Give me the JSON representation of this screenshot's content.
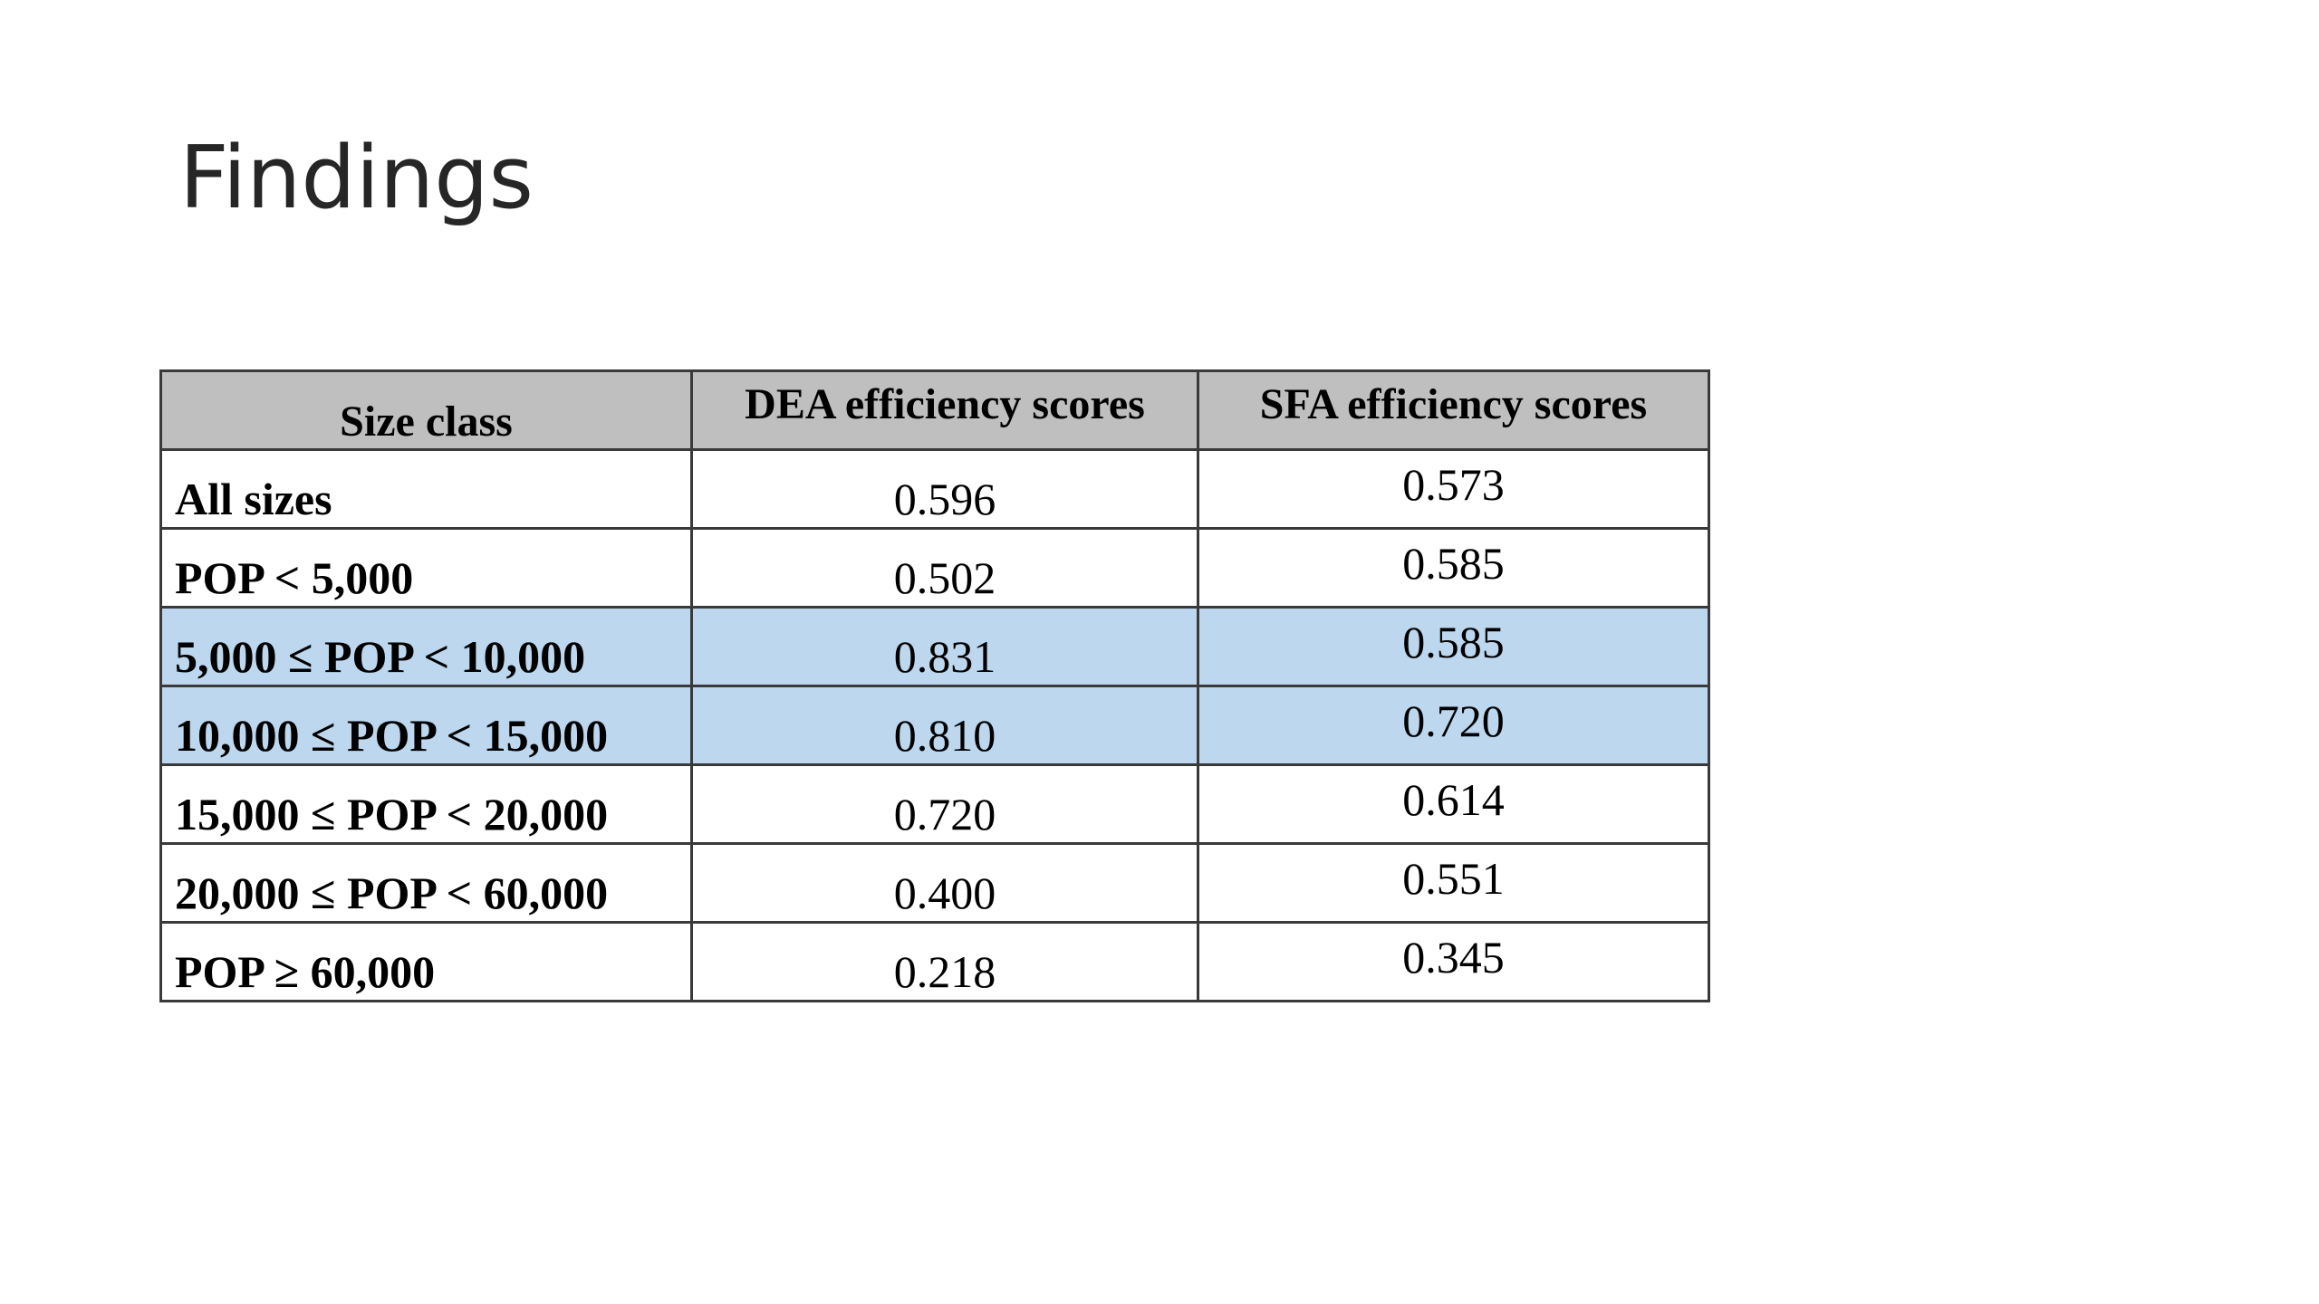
{
  "slide": {
    "title": "Findings"
  },
  "table": {
    "headers": {
      "size_class": "Size class",
      "dea": "DEA efficiency scores",
      "sfa": "SFA efficiency scores"
    },
    "rows": [
      {
        "size_class": "All sizes",
        "dea": "0.596",
        "sfa": "0.573",
        "highlighted": false
      },
      {
        "size_class": "POP < 5,000",
        "dea": "0.502",
        "sfa": "0.585",
        "highlighted": false
      },
      {
        "size_class": "5,000 ≤ POP < 10,000",
        "dea": "0.831",
        "sfa": "0.585",
        "highlighted": true
      },
      {
        "size_class": "10,000 ≤ POP < 15,000",
        "dea": "0.810",
        "sfa": "0.720",
        "highlighted": true
      },
      {
        "size_class": "15,000 ≤ POP < 20,000",
        "dea": "0.720",
        "sfa": "0.614",
        "highlighted": false
      },
      {
        "size_class": "20,000 ≤ POP < 60,000",
        "dea": "0.400",
        "sfa": "0.551",
        "highlighted": false
      },
      {
        "size_class": "POP ≥ 60,000",
        "dea": "0.218",
        "sfa": "0.345",
        "highlighted": false
      }
    ],
    "colors": {
      "header_bg": "#bfbfbf",
      "highlight_bg": "#bdd7ee",
      "border": "#3a3a3a"
    }
  }
}
